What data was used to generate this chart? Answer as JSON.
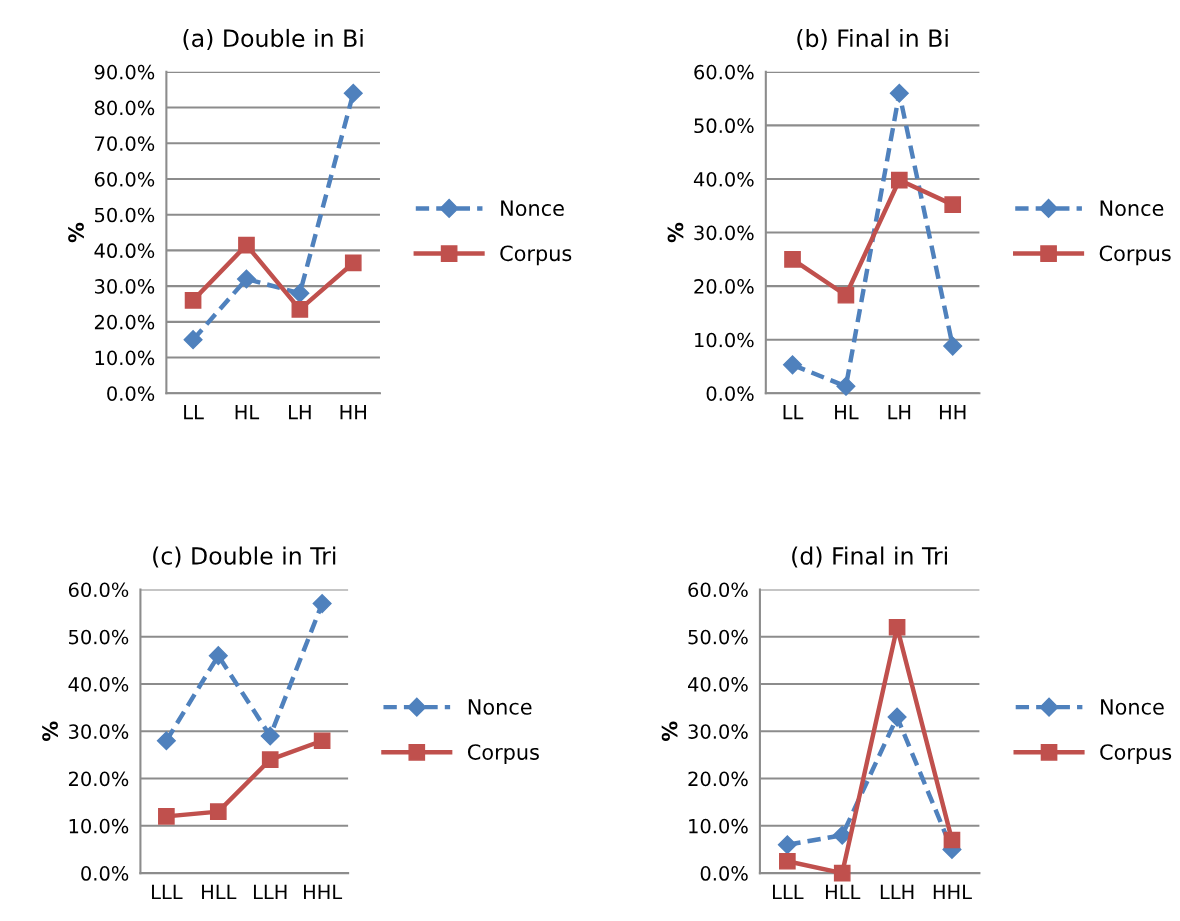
{
  "chart_data": [
    {
      "type": "line",
      "title": "(a) Double in Bi",
      "ylabel": "%",
      "categories": [
        "LL",
        "HL",
        "LH",
        "HH"
      ],
      "ylim": [
        0,
        90
      ],
      "yticks": [
        {
          "value": 0,
          "label": "0.0%"
        },
        {
          "value": 10,
          "label": "10.0%"
        },
        {
          "value": 20,
          "label": "20.0%"
        },
        {
          "value": 30,
          "label": "30.0%"
        },
        {
          "value": 40,
          "label": "40.0%"
        },
        {
          "value": 50,
          "label": "50.0%"
        },
        {
          "value": 60,
          "label": "60.0%"
        },
        {
          "value": 70,
          "label": "70.0%"
        },
        {
          "value": 80,
          "label": "80.0%"
        },
        {
          "value": 90,
          "label": "90.0%"
        }
      ],
      "grid": "y",
      "legend": "right",
      "series": [
        {
          "name": "Nonce",
          "color": "#4f81bd",
          "marker": "diamond",
          "line_style": "dashed",
          "values": [
            15,
            32,
            28,
            84
          ]
        },
        {
          "name": "Corpus",
          "color": "#c0504d",
          "marker": "square",
          "line_style": "solid",
          "values": [
            26,
            41.5,
            23.5,
            36.5
          ]
        }
      ]
    },
    {
      "type": "line",
      "title": "(b) Final in Bi",
      "ylabel": "%",
      "categories": [
        "LL",
        "HL",
        "LH",
        "HH"
      ],
      "ylim": [
        0,
        60
      ],
      "yticks": [
        {
          "value": 0,
          "label": "0.0%"
        },
        {
          "value": 10,
          "label": "10.0%"
        },
        {
          "value": 20,
          "label": "20.0%"
        },
        {
          "value": 30,
          "label": "30.0%"
        },
        {
          "value": 40,
          "label": "40.0%"
        },
        {
          "value": 50,
          "label": "50.0%"
        },
        {
          "value": 60,
          "label": "60.0%"
        }
      ],
      "grid": "y",
      "legend": "right",
      "series": [
        {
          "name": "Nonce",
          "color": "#4f81bd",
          "marker": "diamond",
          "line_style": "dashed",
          "values": [
            5.3,
            1.3,
            56,
            8.8
          ]
        },
        {
          "name": "Corpus",
          "color": "#c0504d",
          "marker": "square",
          "line_style": "solid",
          "values": [
            25,
            18.3,
            39.8,
            35.2
          ]
        }
      ]
    },
    {
      "type": "line",
      "title": "(c) Double in Tri",
      "ylabel": "%",
      "categories": [
        "LLL",
        "HLL",
        "LLH",
        "HHL"
      ],
      "ylim": [
        0,
        60
      ],
      "yticks": [
        {
          "value": 0,
          "label": "0.0%"
        },
        {
          "value": 10,
          "label": "10.0%"
        },
        {
          "value": 20,
          "label": "20.0%"
        },
        {
          "value": 30,
          "label": "30.0%"
        },
        {
          "value": 40,
          "label": "40.0%"
        },
        {
          "value": 50,
          "label": "50.0%"
        },
        {
          "value": 60,
          "label": "60.0%"
        }
      ],
      "grid": "y",
      "legend": "right",
      "series": [
        {
          "name": "Nonce",
          "color": "#4f81bd",
          "marker": "diamond",
          "line_style": "dashed",
          "values": [
            28,
            46,
            29,
            57
          ]
        },
        {
          "name": "Corpus",
          "color": "#c0504d",
          "marker": "square",
          "line_style": "solid",
          "values": [
            12,
            13,
            24,
            28
          ]
        }
      ]
    },
    {
      "type": "line",
      "title": "(d) Final in Tri",
      "ylabel": "%",
      "categories": [
        "LLL",
        "HLL",
        "LLH",
        "HHL"
      ],
      "ylim": [
        0,
        60
      ],
      "yticks": [
        {
          "value": 0,
          "label": "0.0%"
        },
        {
          "value": 10,
          "label": "10.0%"
        },
        {
          "value": 20,
          "label": "20.0%"
        },
        {
          "value": 30,
          "label": "30.0%"
        },
        {
          "value": 40,
          "label": "40.0%"
        },
        {
          "value": 50,
          "label": "50.0%"
        },
        {
          "value": 60,
          "label": "60.0%"
        }
      ],
      "grid": "y",
      "legend": "right",
      "series": [
        {
          "name": "Nonce",
          "color": "#4f81bd",
          "marker": "diamond",
          "line_style": "dashed",
          "values": [
            6,
            8,
            33,
            5
          ]
        },
        {
          "name": "Corpus",
          "color": "#c0504d",
          "marker": "square",
          "line_style": "solid",
          "values": [
            2.5,
            0,
            52,
            7
          ]
        }
      ]
    }
  ]
}
